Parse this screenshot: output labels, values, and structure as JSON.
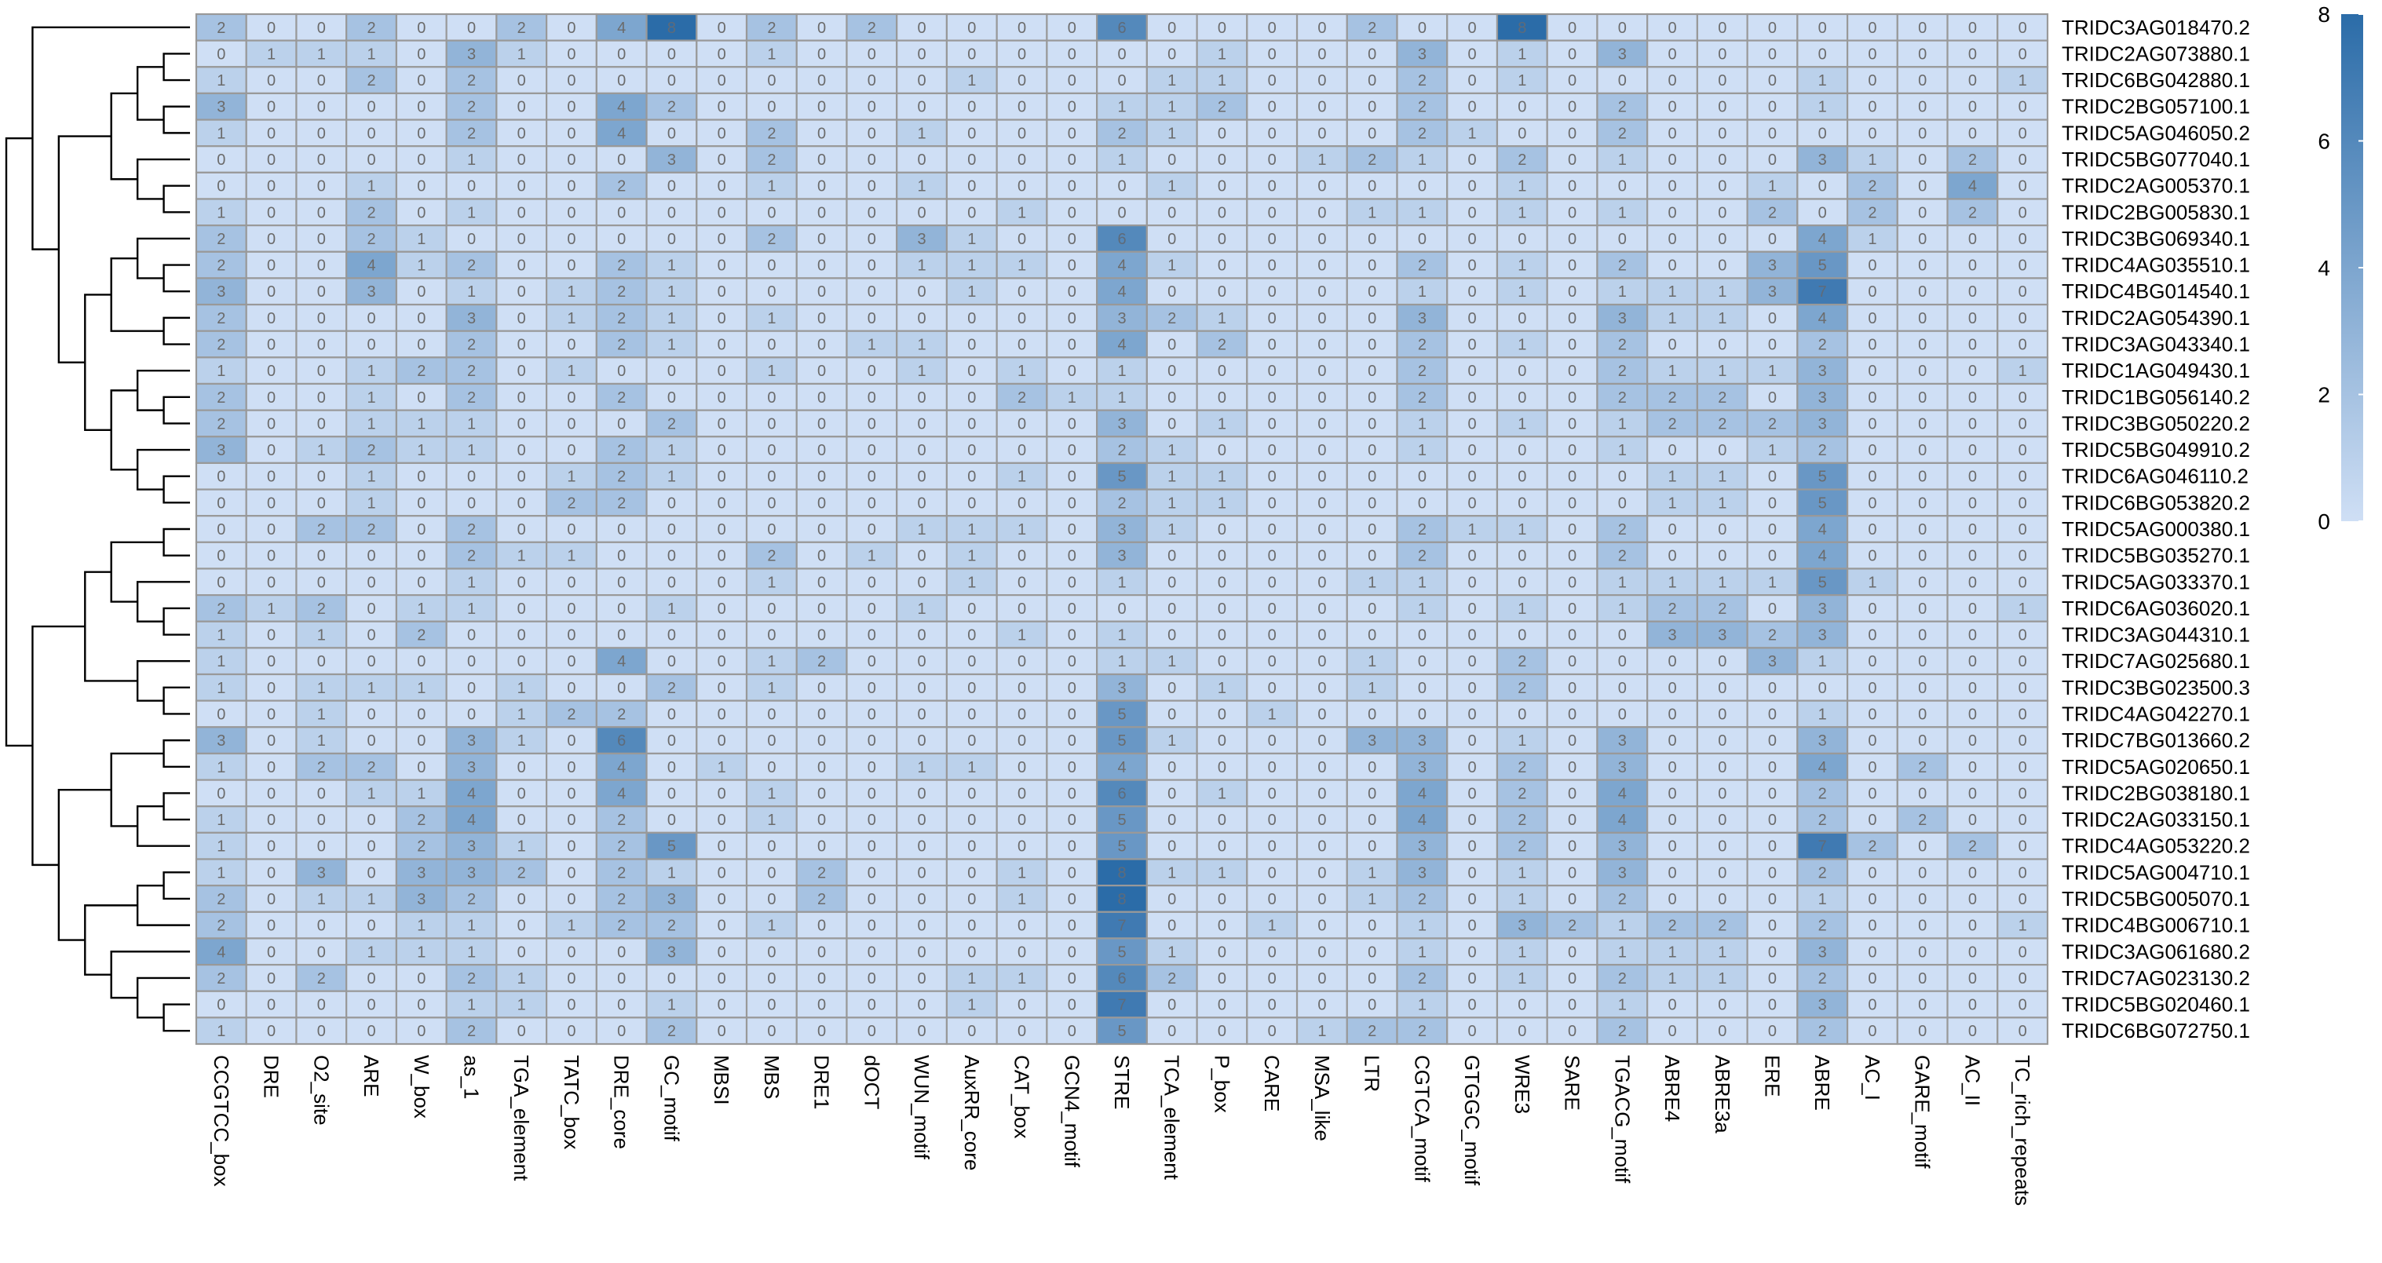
{
  "chart_data": {
    "type": "heatmap",
    "title": "",
    "xlabel": "",
    "ylabel": "",
    "colorbar": {
      "min": 0,
      "max": 8,
      "ticks": [
        0,
        2,
        4,
        6,
        8
      ],
      "color_low": "#cfdff5",
      "color_high": "#2b6ca8"
    },
    "grid": true,
    "dendrogram": "rows",
    "columns": [
      "CCGTCC_box",
      "DRE",
      "O2_site",
      "ARE",
      "W_box",
      "as_1",
      "TGA_element",
      "TATC_box",
      "DRE_core",
      "GC_motif",
      "MBSI",
      "MBS",
      "DRE1",
      "dOCT",
      "WUN_motif",
      "AuxRR_core",
      "CAT_box",
      "GCN4_motif",
      "STRE",
      "TCA_element",
      "P_box",
      "CARE",
      "MSA_like",
      "LTR",
      "CGTCA_motif",
      "GTGGC_motif",
      "WRE3",
      "SARE",
      "TGACG_motif",
      "ABRE4",
      "ABRE3a",
      "ERE",
      "ABRE",
      "AC_I",
      "GARE_motif",
      "AC_II",
      "TC_rich_repeats"
    ],
    "rows": [
      "TRIDC3AG018470.2",
      "TRIDC2AG073880.1",
      "TRIDC6BG042880.1",
      "TRIDC2BG057100.1",
      "TRIDC5AG046050.2",
      "TRIDC5BG077040.1",
      "TRIDC2AG005370.1",
      "TRIDC2BG005830.1",
      "TRIDC3BG069340.1",
      "TRIDC4AG035510.1",
      "TRIDC4BG014540.1",
      "TRIDC2AG054390.1",
      "TRIDC3AG043340.1",
      "TRIDC1AG049430.1",
      "TRIDC1BG056140.2",
      "TRIDC3BG050220.2",
      "TRIDC5BG049910.2",
      "TRIDC6AG046110.2",
      "TRIDC6BG053820.2",
      "TRIDC5AG000380.1",
      "TRIDC5BG035270.1",
      "TRIDC5AG033370.1",
      "TRIDC6AG036020.1",
      "TRIDC3AG044310.1",
      "TRIDC7AG025680.1",
      "TRIDC3BG023500.3",
      "TRIDC4AG042270.1",
      "TRIDC7BG013660.2",
      "TRIDC5AG020650.1",
      "TRIDC2BG038180.1",
      "TRIDC2AG033150.1",
      "TRIDC4AG053220.2",
      "TRIDC5AG004710.1",
      "TRIDC5BG005070.1",
      "TRIDC4BG006710.1",
      "TRIDC3AG061680.2",
      "TRIDC7AG023130.2",
      "TRIDC5BG020460.1",
      "TRIDC6BG072750.1"
    ],
    "values": [
      [
        2,
        0,
        0,
        2,
        0,
        0,
        2,
        0,
        4,
        8,
        0,
        2,
        0,
        2,
        0,
        0,
        0,
        0,
        6,
        0,
        0,
        0,
        0,
        2,
        0,
        0,
        8,
        0,
        0,
        0,
        0,
        0,
        0,
        0,
        0,
        0,
        0
      ],
      [
        0,
        1,
        1,
        1,
        0,
        3,
        1,
        0,
        0,
        0,
        0,
        1,
        0,
        0,
        0,
        0,
        0,
        0,
        0,
        0,
        1,
        0,
        0,
        0,
        3,
        0,
        1,
        0,
        3,
        0,
        0,
        0,
        0,
        0,
        0,
        0,
        0
      ],
      [
        1,
        0,
        0,
        2,
        0,
        2,
        0,
        0,
        0,
        0,
        0,
        0,
        0,
        0,
        0,
        1,
        0,
        0,
        0,
        1,
        1,
        0,
        0,
        0,
        2,
        0,
        1,
        0,
        0,
        0,
        0,
        0,
        1,
        0,
        0,
        0,
        1
      ],
      [
        3,
        0,
        0,
        0,
        0,
        2,
        0,
        0,
        4,
        2,
        0,
        0,
        0,
        0,
        0,
        0,
        0,
        0,
        1,
        1,
        2,
        0,
        0,
        0,
        2,
        0,
        0,
        0,
        2,
        0,
        0,
        0,
        1,
        0,
        0,
        0,
        0
      ],
      [
        1,
        0,
        0,
        0,
        0,
        2,
        0,
        0,
        4,
        0,
        0,
        2,
        0,
        0,
        1,
        0,
        0,
        0,
        2,
        1,
        0,
        0,
        0,
        0,
        2,
        1,
        0,
        0,
        2,
        0,
        0,
        0,
        0,
        0,
        0,
        0,
        0
      ],
      [
        0,
        0,
        0,
        0,
        0,
        1,
        0,
        0,
        0,
        3,
        0,
        2,
        0,
        0,
        0,
        0,
        0,
        0,
        1,
        0,
        0,
        0,
        1,
        2,
        1,
        0,
        2,
        0,
        1,
        0,
        0,
        0,
        3,
        1,
        0,
        2,
        0
      ],
      [
        0,
        0,
        0,
        1,
        0,
        0,
        0,
        0,
        2,
        0,
        0,
        1,
        0,
        0,
        1,
        0,
        0,
        0,
        0,
        1,
        0,
        0,
        0,
        0,
        0,
        0,
        1,
        0,
        0,
        0,
        0,
        1,
        0,
        2,
        0,
        4,
        0
      ],
      [
        1,
        0,
        0,
        2,
        0,
        1,
        0,
        0,
        0,
        0,
        0,
        0,
        0,
        0,
        0,
        0,
        1,
        0,
        0,
        0,
        0,
        0,
        0,
        1,
        1,
        0,
        1,
        0,
        1,
        0,
        0,
        2,
        0,
        2,
        0,
        2,
        0
      ],
      [
        2,
        0,
        0,
        2,
        1,
        0,
        0,
        0,
        0,
        0,
        0,
        2,
        0,
        0,
        3,
        1,
        0,
        0,
        6,
        0,
        0,
        0,
        0,
        0,
        0,
        0,
        0,
        0,
        0,
        0,
        0,
        0,
        4,
        1,
        0,
        0,
        0
      ],
      [
        2,
        0,
        0,
        4,
        1,
        2,
        0,
        0,
        2,
        1,
        0,
        0,
        0,
        0,
        1,
        1,
        1,
        0,
        4,
        1,
        0,
        0,
        0,
        0,
        2,
        0,
        1,
        0,
        2,
        0,
        0,
        3,
        5,
        0,
        0,
        0,
        0
      ],
      [
        3,
        0,
        0,
        3,
        0,
        1,
        0,
        1,
        2,
        1,
        0,
        0,
        0,
        0,
        0,
        1,
        0,
        0,
        4,
        0,
        0,
        0,
        0,
        0,
        1,
        0,
        1,
        0,
        1,
        1,
        1,
        3,
        7,
        0,
        0,
        0,
        0
      ],
      [
        2,
        0,
        0,
        0,
        0,
        3,
        0,
        1,
        2,
        1,
        0,
        1,
        0,
        0,
        0,
        0,
        0,
        0,
        3,
        2,
        1,
        0,
        0,
        0,
        3,
        0,
        0,
        0,
        3,
        1,
        1,
        0,
        4,
        0,
        0,
        0,
        0
      ],
      [
        2,
        0,
        0,
        0,
        0,
        2,
        0,
        0,
        2,
        1,
        0,
        0,
        0,
        1,
        1,
        0,
        0,
        0,
        4,
        0,
        2,
        0,
        0,
        0,
        2,
        0,
        1,
        0,
        2,
        0,
        0,
        0,
        2,
        0,
        0,
        0,
        0
      ],
      [
        1,
        0,
        0,
        1,
        2,
        2,
        0,
        1,
        0,
        0,
        0,
        1,
        0,
        0,
        1,
        0,
        1,
        0,
        1,
        0,
        0,
        0,
        0,
        0,
        2,
        0,
        0,
        0,
        2,
        1,
        1,
        1,
        3,
        0,
        0,
        0,
        1
      ],
      [
        2,
        0,
        0,
        1,
        0,
        2,
        0,
        0,
        2,
        0,
        0,
        0,
        0,
        0,
        0,
        0,
        2,
        1,
        1,
        0,
        0,
        0,
        0,
        0,
        2,
        0,
        0,
        0,
        2,
        2,
        2,
        0,
        3,
        0,
        0,
        0,
        0
      ],
      [
        2,
        0,
        0,
        1,
        1,
        1,
        0,
        0,
        0,
        2,
        0,
        0,
        0,
        0,
        0,
        0,
        0,
        0,
        3,
        0,
        1,
        0,
        0,
        0,
        1,
        0,
        1,
        0,
        1,
        2,
        2,
        2,
        3,
        0,
        0,
        0,
        0
      ],
      [
        3,
        0,
        1,
        2,
        1,
        1,
        0,
        0,
        2,
        1,
        0,
        0,
        0,
        0,
        0,
        0,
        0,
        0,
        2,
        1,
        0,
        0,
        0,
        0,
        1,
        0,
        0,
        0,
        1,
        0,
        0,
        1,
        2,
        0,
        0,
        0,
        0
      ],
      [
        0,
        0,
        0,
        1,
        0,
        0,
        0,
        1,
        2,
        1,
        0,
        0,
        0,
        0,
        0,
        0,
        1,
        0,
        5,
        1,
        1,
        0,
        0,
        0,
        0,
        0,
        0,
        0,
        0,
        1,
        1,
        0,
        5,
        0,
        0,
        0,
        0
      ],
      [
        0,
        0,
        0,
        1,
        0,
        0,
        0,
        2,
        2,
        0,
        0,
        0,
        0,
        0,
        0,
        0,
        0,
        0,
        2,
        1,
        1,
        0,
        0,
        0,
        0,
        0,
        0,
        0,
        0,
        1,
        1,
        0,
        5,
        0,
        0,
        0,
        0
      ],
      [
        0,
        0,
        2,
        2,
        0,
        2,
        0,
        0,
        0,
        0,
        0,
        0,
        0,
        0,
        1,
        1,
        1,
        0,
        3,
        1,
        0,
        0,
        0,
        0,
        2,
        1,
        1,
        0,
        2,
        0,
        0,
        0,
        4,
        0,
        0,
        0,
        0
      ],
      [
        0,
        0,
        0,
        0,
        0,
        2,
        1,
        1,
        0,
        0,
        0,
        2,
        0,
        1,
        0,
        1,
        0,
        0,
        3,
        0,
        0,
        0,
        0,
        0,
        2,
        0,
        0,
        0,
        2,
        0,
        0,
        0,
        4,
        0,
        0,
        0,
        0
      ],
      [
        0,
        0,
        0,
        0,
        0,
        1,
        0,
        0,
        0,
        0,
        0,
        1,
        0,
        0,
        0,
        1,
        0,
        0,
        1,
        0,
        0,
        0,
        0,
        1,
        1,
        0,
        0,
        0,
        1,
        1,
        1,
        1,
        5,
        1,
        0,
        0,
        0
      ],
      [
        2,
        1,
        2,
        0,
        1,
        1,
        0,
        0,
        0,
        1,
        0,
        0,
        0,
        0,
        1,
        0,
        0,
        0,
        0,
        0,
        0,
        0,
        0,
        0,
        1,
        0,
        1,
        0,
        1,
        2,
        2,
        0,
        3,
        0,
        0,
        0,
        1
      ],
      [
        1,
        0,
        1,
        0,
        2,
        0,
        0,
        0,
        0,
        0,
        0,
        0,
        0,
        0,
        0,
        0,
        1,
        0,
        1,
        0,
        0,
        0,
        0,
        0,
        0,
        0,
        0,
        0,
        0,
        3,
        3,
        2,
        3,
        0,
        0,
        0,
        0
      ],
      [
        1,
        0,
        0,
        0,
        0,
        0,
        0,
        0,
        4,
        0,
        0,
        1,
        2,
        0,
        0,
        0,
        0,
        0,
        1,
        1,
        0,
        0,
        0,
        1,
        0,
        0,
        2,
        0,
        0,
        0,
        0,
        3,
        1,
        0,
        0,
        0,
        0
      ],
      [
        1,
        0,
        1,
        1,
        1,
        0,
        1,
        0,
        0,
        2,
        0,
        1,
        0,
        0,
        0,
        0,
        0,
        0,
        3,
        0,
        1,
        0,
        0,
        1,
        0,
        0,
        2,
        0,
        0,
        0,
        0,
        0,
        0,
        0,
        0,
        0,
        0
      ],
      [
        0,
        0,
        1,
        0,
        0,
        0,
        1,
        2,
        2,
        0,
        0,
        0,
        0,
        0,
        0,
        0,
        0,
        0,
        5,
        0,
        0,
        1,
        0,
        0,
        0,
        0,
        0,
        0,
        0,
        0,
        0,
        0,
        1,
        0,
        0,
        0,
        0
      ],
      [
        3,
        0,
        1,
        0,
        0,
        3,
        1,
        0,
        6,
        0,
        0,
        0,
        0,
        0,
        0,
        0,
        0,
        0,
        5,
        1,
        0,
        0,
        0,
        3,
        3,
        0,
        1,
        0,
        3,
        0,
        0,
        0,
        3,
        0,
        0,
        0,
        0
      ],
      [
        1,
        0,
        2,
        2,
        0,
        3,
        0,
        0,
        4,
        0,
        1,
        0,
        0,
        0,
        1,
        1,
        0,
        0,
        4,
        0,
        0,
        0,
        0,
        0,
        3,
        0,
        2,
        0,
        3,
        0,
        0,
        0,
        4,
        0,
        2,
        0,
        0
      ],
      [
        0,
        0,
        0,
        1,
        1,
        4,
        0,
        0,
        4,
        0,
        0,
        1,
        0,
        0,
        0,
        0,
        0,
        0,
        6,
        0,
        1,
        0,
        0,
        0,
        4,
        0,
        2,
        0,
        4,
        0,
        0,
        0,
        2,
        0,
        0,
        0,
        0
      ],
      [
        1,
        0,
        0,
        0,
        2,
        4,
        0,
        0,
        2,
        0,
        0,
        1,
        0,
        0,
        0,
        0,
        0,
        0,
        5,
        0,
        0,
        0,
        0,
        0,
        4,
        0,
        2,
        0,
        4,
        0,
        0,
        0,
        2,
        0,
        2,
        0,
        0
      ],
      [
        1,
        0,
        0,
        0,
        2,
        3,
        1,
        0,
        2,
        5,
        0,
        0,
        0,
        0,
        0,
        0,
        0,
        0,
        5,
        0,
        0,
        0,
        0,
        0,
        3,
        0,
        2,
        0,
        3,
        0,
        0,
        0,
        7,
        2,
        0,
        2,
        0
      ],
      [
        1,
        0,
        3,
        0,
        3,
        3,
        2,
        0,
        2,
        1,
        0,
        0,
        2,
        0,
        0,
        0,
        1,
        0,
        8,
        1,
        1,
        0,
        0,
        1,
        3,
        0,
        1,
        0,
        3,
        0,
        0,
        0,
        2,
        0,
        0,
        0,
        0
      ],
      [
        2,
        0,
        1,
        1,
        3,
        2,
        0,
        0,
        2,
        3,
        0,
        0,
        2,
        0,
        0,
        0,
        1,
        0,
        8,
        0,
        0,
        0,
        0,
        1,
        2,
        0,
        1,
        0,
        2,
        0,
        0,
        0,
        1,
        0,
        0,
        0,
        0
      ],
      [
        2,
        0,
        0,
        0,
        1,
        1,
        0,
        1,
        2,
        2,
        0,
        1,
        0,
        0,
        0,
        0,
        0,
        0,
        7,
        0,
        0,
        1,
        0,
        0,
        1,
        0,
        3,
        2,
        1,
        2,
        2,
        0,
        2,
        0,
        0,
        0,
        1
      ],
      [
        4,
        0,
        0,
        1,
        1,
        1,
        0,
        0,
        0,
        3,
        0,
        0,
        0,
        0,
        0,
        0,
        0,
        0,
        5,
        1,
        0,
        0,
        0,
        0,
        1,
        0,
        1,
        0,
        1,
        1,
        1,
        0,
        3,
        0,
        0,
        0,
        0
      ],
      [
        2,
        0,
        2,
        0,
        0,
        2,
        1,
        0,
        0,
        0,
        0,
        0,
        0,
        0,
        0,
        1,
        1,
        0,
        6,
        2,
        0,
        0,
        0,
        0,
        2,
        0,
        1,
        0,
        2,
        1,
        1,
        0,
        2,
        0,
        0,
        0,
        0
      ],
      [
        0,
        0,
        0,
        0,
        0,
        1,
        1,
        0,
        0,
        1,
        0,
        0,
        0,
        0,
        0,
        1,
        0,
        0,
        7,
        0,
        0,
        0,
        0,
        0,
        1,
        0,
        0,
        0,
        1,
        0,
        0,
        0,
        3,
        0,
        0,
        0,
        0
      ],
      [
        1,
        0,
        0,
        0,
        0,
        2,
        0,
        0,
        0,
        2,
        0,
        0,
        0,
        0,
        0,
        0,
        0,
        0,
        5,
        0,
        0,
        0,
        1,
        2,
        2,
        0,
        0,
        0,
        2,
        0,
        0,
        0,
        2,
        0,
        0,
        0,
        0
      ]
    ],
    "dendrogram_merges": [
      [
        [
          3,
          4
        ],
        [
          2,
          [
            3,
            4
          ]
        ],
        [
          [
            2,
            [
              3,
              4
            ]
          ],
          [
            5,
            6
          ]
        ],
        [
          1,
          [
            [
              2,
              [
                3,
                4
              ]
            ],
            [
              5,
              6
            ]
          ]
        ],
        [
          0,
          [
            1,
            [
              [
                2,
                [
                  3,
                  4
                ]
              ],
              [
                5,
                6
              ]
            ]
          ]
        ]
      ],
      "see script"
    ]
  }
}
